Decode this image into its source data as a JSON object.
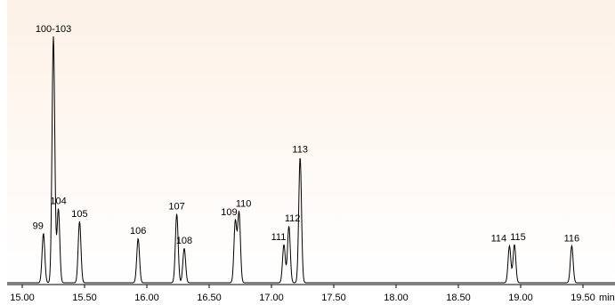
{
  "chart_data": {
    "type": "line",
    "title": "",
    "xlabel": "min",
    "ylabel": "",
    "xlim": [
      14.8,
      19.73
    ],
    "ylim": [
      0,
      100
    ],
    "grid": false,
    "x_ticks": [
      "15.00",
      "15.50",
      "16.00",
      "16.50",
      "17.00",
      "17.50",
      "18.00",
      "18.50",
      "19.00",
      "19.50"
    ],
    "background": {
      "top": "#fdf1e6",
      "bottom": "#ffffff"
    },
    "line_color": "#000000",
    "series": [
      {
        "peaks": [
          {
            "label": "99",
            "x": 15.17,
            "y": 20
          },
          {
            "label": "100-103",
            "x": 15.25,
            "y": 100
          },
          {
            "label": "104",
            "x": 15.29,
            "y": 30
          },
          {
            "label": "105",
            "x": 15.46,
            "y": 25
          },
          {
            "label": "106",
            "x": 15.93,
            "y": 18
          },
          {
            "label": "107",
            "x": 16.24,
            "y": 28
          },
          {
            "label": "108",
            "x": 16.3,
            "y": 14
          },
          {
            "label": "109",
            "x": 16.71,
            "y": 25
          },
          {
            "label": "110",
            "x": 16.74,
            "y": 28.5
          },
          {
            "label": "111",
            "x": 17.1,
            "y": 15.5
          },
          {
            "label": "112",
            "x": 17.14,
            "y": 23
          },
          {
            "label": "113",
            "x": 17.23,
            "y": 51
          },
          {
            "label": "114",
            "x": 18.91,
            "y": 15
          },
          {
            "label": "115",
            "x": 18.95,
            "y": 15.5
          },
          {
            "label": "116",
            "x": 19.41,
            "y": 15
          }
        ]
      }
    ]
  }
}
